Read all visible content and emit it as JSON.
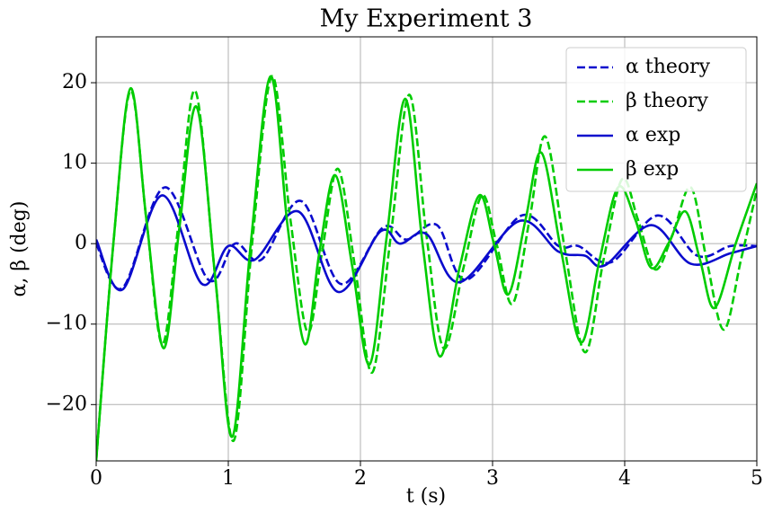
{
  "chart_data": {
    "type": "line",
    "title": "My Experiment 3",
    "x_label": "t (s)",
    "y_label": "α, β (deg)",
    "xlim": [
      0,
      5
    ],
    "ylim": [
      -27,
      25.7
    ],
    "xticks": [
      0,
      1,
      2,
      3,
      4,
      5
    ],
    "yticks": [
      {
        "value": -20,
        "label": "−20"
      },
      {
        "value": -10,
        "label": "−10"
      },
      0,
      10,
      20
    ],
    "grid": true,
    "legend": "upper right",
    "series": [
      {
        "name": "α theory",
        "color": "#0a0acd",
        "dashed": true,
        "x": [
          0,
          0.2,
          0.52,
          0.85,
          1.05,
          1.25,
          1.55,
          1.85,
          2.17,
          2.35,
          2.58,
          2.8,
          3.22,
          3.5,
          3.65,
          3.9,
          4.25,
          4.55,
          4.8,
          5
        ],
        "values": [
          0,
          -5.5,
          7,
          -4.5,
          0,
          -2,
          5.3,
          -5,
          2,
          0.5,
          2.3,
          -4.5,
          3.5,
          -0.3,
          -0.3,
          -2.3,
          3.5,
          -1.5,
          -0.3,
          -0.3
        ]
      },
      {
        "name": "β theory",
        "color": "#00cc00",
        "dashed": true,
        "x": [
          0,
          0.13,
          0.26,
          0.38,
          0.5,
          0.62,
          0.75,
          0.9,
          1.04,
          1.18,
          1.33,
          1.47,
          1.6,
          1.71,
          1.83,
          1.96,
          2.09,
          2.23,
          2.37,
          2.5,
          2.63,
          2.78,
          2.92,
          3.03,
          3.15,
          3.28,
          3.4,
          3.55,
          3.7,
          3.84,
          3.98,
          4.1,
          4.23,
          4.36,
          4.5,
          4.62,
          4.75,
          4.88,
          5
        ],
        "values": [
          -27,
          0,
          19,
          3,
          -12.5,
          2,
          19,
          -4,
          -24.5,
          0,
          20.8,
          3,
          -11,
          -1,
          9.3,
          -3,
          -16,
          1,
          18.5,
          1,
          -13,
          -3,
          6,
          0,
          -7.5,
          3,
          13.3,
          -1,
          -13.5,
          -2,
          8,
          3,
          -3.2,
          1,
          7,
          -2,
          -10.7,
          -2,
          6.7
        ]
      },
      {
        "name": "α exp",
        "color": "#0a0acd",
        "dashed": false,
        "x": [
          0,
          0.2,
          0.5,
          0.8,
          1.0,
          1.2,
          1.53,
          1.83,
          2.15,
          2.3,
          2.5,
          2.75,
          3.2,
          3.5,
          3.7,
          3.85,
          4.2,
          4.5,
          4.8,
          5
        ],
        "values": [
          0.5,
          -5.7,
          6,
          -5,
          -0.3,
          -2,
          4,
          -6,
          1.5,
          0,
          1.2,
          -4.8,
          2.8,
          -1,
          -1.5,
          -2.7,
          2.3,
          -2.5,
          -1.2,
          -0.3
        ]
      },
      {
        "name": "β exp",
        "color": "#00cc00",
        "dashed": false,
        "x": [
          0,
          0.13,
          0.26,
          0.38,
          0.51,
          0.63,
          0.76,
          0.9,
          1.03,
          1.17,
          1.32,
          1.45,
          1.58,
          1.69,
          1.81,
          1.94,
          2.07,
          2.2,
          2.34,
          2.47,
          2.6,
          2.75,
          2.9,
          3.01,
          3.12,
          3.25,
          3.37,
          3.52,
          3.67,
          3.81,
          3.95,
          4.08,
          4.2,
          4.33,
          4.46,
          4.57,
          4.68,
          4.84,
          5
        ],
        "values": [
          -27,
          0,
          19.3,
          3,
          -13,
          2,
          17,
          -4,
          -24,
          0,
          20.8,
          2,
          -12.5,
          -1,
          8.5,
          -3,
          -15,
          1,
          18,
          0,
          -14,
          -3,
          6,
          0,
          -6.3,
          3,
          11.3,
          -1,
          -12.3,
          -2,
          7,
          3,
          -3,
          0,
          4,
          -2,
          -8,
          0,
          7.5
        ]
      }
    ]
  }
}
